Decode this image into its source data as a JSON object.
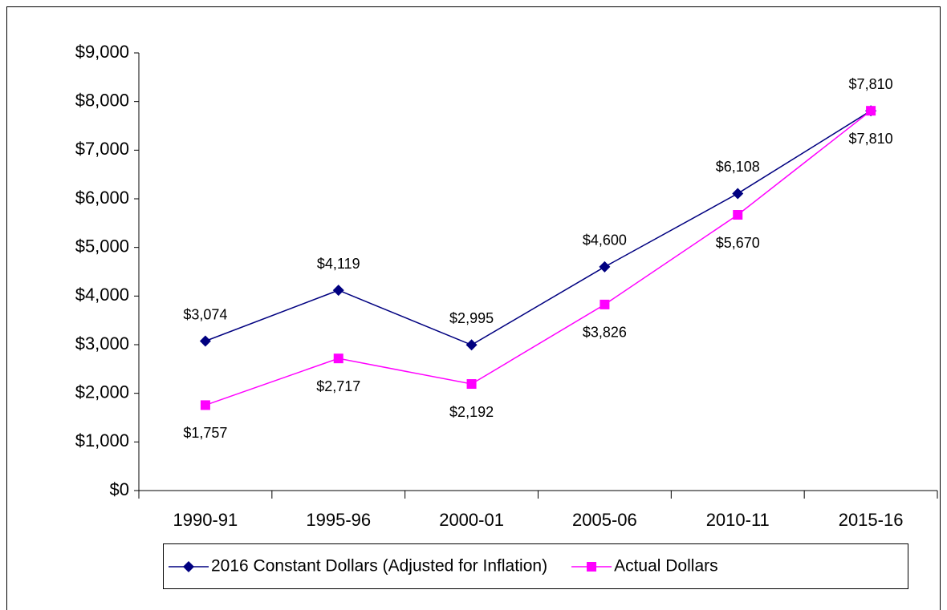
{
  "chart_data": {
    "type": "line",
    "categories": [
      "1990-91",
      "1995-96",
      "2000-01",
      "2005-06",
      "2010-11",
      "2015-16"
    ],
    "series": [
      {
        "name": "2016 Constant Dollars (Adjusted for Inflation)",
        "color": "#000080",
        "marker": "diamond",
        "values": [
          3074,
          4119,
          2995,
          4600,
          6108,
          7810
        ],
        "value_labels": [
          "$3,074",
          "$4,119",
          "$2,995",
          "$4,600",
          "$6,108",
          "$7,810"
        ]
      },
      {
        "name": "Actual Dollars",
        "color": "#ff00ff",
        "marker": "square",
        "values": [
          1757,
          2717,
          2192,
          3826,
          5670,
          7810
        ],
        "value_labels": [
          "$1,757",
          "$2,717",
          "$2,192",
          "$3,826",
          "$5,670",
          "$7,810"
        ]
      }
    ],
    "ylim": [
      0,
      9000
    ],
    "yticks": [
      {
        "value": 0,
        "label": "$0"
      },
      {
        "value": 1000,
        "label": "$1,000"
      },
      {
        "value": 2000,
        "label": "$2,000"
      },
      {
        "value": 3000,
        "label": "$3,000"
      },
      {
        "value": 4000,
        "label": "$4,000"
      },
      {
        "value": 5000,
        "label": "$5,000"
      },
      {
        "value": 6000,
        "label": "$6,000"
      },
      {
        "value": 7000,
        "label": "$7,000"
      },
      {
        "value": 8000,
        "label": "$8,000"
      },
      {
        "value": 9000,
        "label": "$9,000"
      }
    ],
    "grid": false,
    "legend": "bottom"
  }
}
